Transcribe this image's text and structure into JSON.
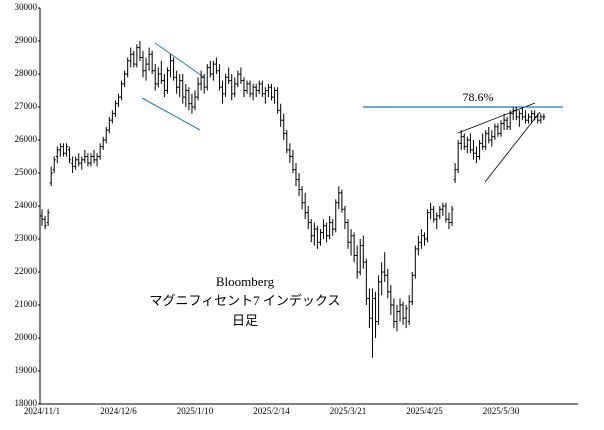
{
  "chart_data": {
    "type": "ohlc",
    "color": "#000000",
    "annotation_lines": [
      "Bloomberg",
      "マグニフィセント7 インデックス",
      "日足"
    ],
    "hline": {
      "value": 27000,
      "label": "78.6%",
      "color": "#1f77b4"
    },
    "ylim": [
      18000,
      30000
    ],
    "yticks": [
      18000,
      19000,
      20000,
      21000,
      22000,
      23000,
      24000,
      25000,
      26000,
      27000,
      28000,
      29000,
      30000
    ],
    "categories": [
      "2024/11/1",
      null,
      null,
      null,
      null,
      null,
      null,
      null,
      null,
      null,
      null,
      null,
      null,
      null,
      null,
      null,
      null,
      null,
      null,
      null,
      null,
      null,
      null,
      null,
      null,
      "2024/12/6",
      null,
      null,
      null,
      null,
      null,
      null,
      null,
      null,
      null,
      null,
      null,
      null,
      null,
      null,
      null,
      null,
      null,
      null,
      null,
      null,
      null,
      null,
      null,
      null,
      "2025/1/10",
      null,
      null,
      null,
      null,
      null,
      null,
      null,
      null,
      null,
      null,
      null,
      null,
      null,
      null,
      null,
      null,
      null,
      null,
      null,
      null,
      null,
      null,
      null,
      null,
      "2025/2/14",
      null,
      null,
      null,
      null,
      null,
      null,
      null,
      null,
      null,
      null,
      null,
      null,
      null,
      null,
      null,
      null,
      null,
      null,
      null,
      null,
      null,
      null,
      null,
      null,
      "2025/3/21",
      null,
      null,
      null,
      null,
      null,
      null,
      null,
      null,
      null,
      null,
      null,
      null,
      null,
      null,
      null,
      null,
      null,
      null,
      null,
      null,
      null,
      null,
      null,
      null,
      "2025/4/25",
      null,
      null,
      null,
      null,
      null,
      null,
      null,
      null,
      null,
      null,
      null,
      null,
      null,
      null,
      null,
      null,
      null,
      null,
      null,
      null,
      null,
      null,
      null,
      null,
      "2025/5/30",
      null,
      null,
      null,
      null,
      null,
      null,
      null,
      null,
      null,
      null,
      null,
      null,
      null,
      null
    ],
    "ohlc": [
      [
        23700,
        23900,
        23400,
        23600
      ],
      [
        23600,
        23700,
        23300,
        23400
      ],
      [
        23500,
        23900,
        23400,
        23800
      ],
      [
        24700,
        25200,
        24600,
        25000
      ],
      [
        25100,
        25500,
        25000,
        25400
      ],
      [
        25500,
        25800,
        25300,
        25700
      ],
      [
        25700,
        25900,
        25500,
        25800
      ],
      [
        25800,
        25900,
        25500,
        25600
      ],
      [
        25600,
        25900,
        25500,
        25800
      ],
      [
        25700,
        25800,
        25300,
        25400
      ],
      [
        25300,
        25500,
        25000,
        25200
      ],
      [
        25200,
        25500,
        25100,
        25400
      ],
      [
        25400,
        25600,
        25200,
        25300
      ],
      [
        25300,
        25500,
        25100,
        25400
      ],
      [
        25400,
        25700,
        25300,
        25500
      ],
      [
        25500,
        25600,
        25200,
        25300
      ],
      [
        25300,
        25600,
        25200,
        25500
      ],
      [
        25500,
        25700,
        25300,
        25400
      ],
      [
        25400,
        25600,
        25200,
        25500
      ],
      [
        25500,
        25900,
        25400,
        25800
      ],
      [
        25800,
        26100,
        25700,
        26000
      ],
      [
        26000,
        26400,
        25900,
        26300
      ],
      [
        26300,
        26700,
        26200,
        26600
      ],
      [
        26600,
        26900,
        26500,
        26800
      ],
      [
        26800,
        27200,
        26700,
        27100
      ],
      [
        27100,
        27400,
        27000,
        27300
      ],
      [
        27300,
        27800,
        27200,
        27700
      ],
      [
        27700,
        28100,
        27600,
        28000
      ],
      [
        28000,
        28500,
        27900,
        28400
      ],
      [
        28400,
        28800,
        28200,
        28600
      ],
      [
        28600,
        28700,
        28200,
        28300
      ],
      [
        28300,
        28900,
        28200,
        28800
      ],
      [
        28800,
        29000,
        28400,
        28500
      ],
      [
        28500,
        28700,
        27900,
        28100
      ],
      [
        28100,
        28500,
        27800,
        28300
      ],
      [
        28300,
        28800,
        28100,
        28600
      ],
      [
        28600,
        28700,
        28000,
        28100
      ],
      [
        28100,
        28300,
        27500,
        27700
      ],
      [
        27700,
        28200,
        27600,
        28000
      ],
      [
        28000,
        28400,
        27700,
        27800
      ],
      [
        27800,
        28000,
        27300,
        27500
      ],
      [
        27500,
        28200,
        27400,
        28100
      ],
      [
        28100,
        28600,
        27900,
        28400
      ],
      [
        28400,
        28500,
        27800,
        27900
      ],
      [
        27900,
        28100,
        27400,
        27600
      ],
      [
        27600,
        28000,
        27300,
        27800
      ],
      [
        27800,
        28000,
        27100,
        27300
      ],
      [
        27300,
        27700,
        27000,
        27500
      ],
      [
        27500,
        27600,
        26900,
        27100
      ],
      [
        27100,
        27400,
        26800,
        27000
      ],
      [
        27000,
        27500,
        26900,
        27300
      ],
      [
        27300,
        27900,
        27200,
        27700
      ],
      [
        27700,
        28100,
        27500,
        27900
      ],
      [
        27900,
        28000,
        27400,
        27600
      ],
      [
        27600,
        28300,
        27500,
        28200
      ],
      [
        28200,
        28400,
        27900,
        28000
      ],
      [
        28000,
        28400,
        27800,
        28300
      ],
      [
        28300,
        28500,
        28000,
        28100
      ],
      [
        28100,
        28300,
        27500,
        27600
      ],
      [
        27600,
        27800,
        27100,
        27400
      ],
      [
        27400,
        28000,
        27300,
        27900
      ],
      [
        27900,
        28200,
        27700,
        27800
      ],
      [
        27800,
        28000,
        27200,
        27400
      ],
      [
        27400,
        27900,
        27300,
        27700
      ],
      [
        27700,
        28100,
        27600,
        28000
      ],
      [
        28000,
        28200,
        27700,
        27800
      ],
      [
        27800,
        27900,
        27300,
        27500
      ],
      [
        27500,
        27800,
        27400,
        27700
      ],
      [
        27700,
        27800,
        27300,
        27400
      ],
      [
        27400,
        27700,
        27200,
        27600
      ],
      [
        27600,
        27700,
        27300,
        27500
      ],
      [
        27500,
        27800,
        27400,
        27700
      ],
      [
        27700,
        27800,
        27300,
        27400
      ],
      [
        27400,
        27600,
        27100,
        27500
      ],
      [
        27500,
        27700,
        27300,
        27600
      ],
      [
        27600,
        27700,
        27200,
        27300
      ],
      [
        27300,
        27600,
        27100,
        27500
      ],
      [
        27500,
        27600,
        26800,
        26900
      ],
      [
        26900,
        27100,
        26400,
        26600
      ],
      [
        26600,
        26800,
        26000,
        26200
      ],
      [
        26200,
        26300,
        25600,
        25700
      ],
      [
        25700,
        25900,
        25300,
        25500
      ],
      [
        25500,
        25700,
        25000,
        25100
      ],
      [
        25100,
        25300,
        24600,
        24800
      ],
      [
        24800,
        25000,
        24300,
        24500
      ],
      [
        24500,
        24600,
        23900,
        24100
      ],
      [
        24100,
        24400,
        23600,
        23800
      ],
      [
        23800,
        24000,
        23300,
        23500
      ],
      [
        23500,
        23600,
        22900,
        23100
      ],
      [
        23100,
        23500,
        22800,
        23300
      ],
      [
        23300,
        23400,
        22700,
        22900
      ],
      [
        22900,
        23300,
        22800,
        23200
      ],
      [
        23200,
        23600,
        23000,
        23400
      ],
      [
        23400,
        23500,
        22900,
        23100
      ],
      [
        23100,
        23700,
        23000,
        23500
      ],
      [
        23500,
        23600,
        23100,
        23300
      ],
      [
        23300,
        24200,
        23200,
        24100
      ],
      [
        24100,
        24600,
        23900,
        24400
      ],
      [
        24400,
        24500,
        23800,
        23900
      ],
      [
        23900,
        24000,
        23300,
        23500
      ],
      [
        23500,
        23600,
        22700,
        22900
      ],
      [
        22900,
        23300,
        22500,
        23100
      ],
      [
        23100,
        23200,
        22300,
        22500
      ],
      [
        22500,
        22800,
        21800,
        22000
      ],
      [
        22000,
        23000,
        21900,
        22800
      ],
      [
        22800,
        23100,
        22100,
        22300
      ],
      [
        22300,
        22400,
        21000,
        21200
      ],
      [
        21200,
        21500,
        20300,
        20600
      ],
      [
        20600,
        21500,
        19400,
        21200
      ],
      [
        21200,
        21400,
        20000,
        20500
      ],
      [
        20500,
        21900,
        20400,
        21700
      ],
      [
        21700,
        22300,
        21300,
        22000
      ],
      [
        22000,
        22600,
        21700,
        21900
      ],
      [
        21900,
        22100,
        21200,
        21400
      ],
      [
        21400,
        21600,
        20700,
        21000
      ],
      [
        21000,
        21200,
        20300,
        20500
      ],
      [
        20500,
        21000,
        20200,
        20800
      ],
      [
        20800,
        21200,
        20500,
        21000
      ],
      [
        21000,
        21100,
        20400,
        20600
      ],
      [
        20600,
        21000,
        20300,
        20900
      ],
      [
        20500,
        21300,
        20400,
        21100
      ],
      [
        21100,
        22000,
        21000,
        21900
      ],
      [
        21900,
        22800,
        21800,
        22700
      ],
      [
        22700,
        23100,
        22500,
        22900
      ],
      [
        22900,
        23300,
        22700,
        23100
      ],
      [
        23100,
        23200,
        22800,
        23000
      ],
      [
        23000,
        23900,
        22900,
        23800
      ],
      [
        23800,
        24100,
        23600,
        23900
      ],
      [
        23900,
        24000,
        23500,
        23600
      ],
      [
        23600,
        23800,
        23300,
        23700
      ],
      [
        23700,
        24000,
        23600,
        23900
      ],
      [
        23900,
        24100,
        23700,
        24000
      ],
      [
        24000,
        24100,
        23500,
        23600
      ],
      [
        23600,
        23800,
        23300,
        23500
      ],
      [
        23500,
        24000,
        23400,
        23900
      ],
      [
        24800,
        25300,
        24700,
        25100
      ],
      [
        25100,
        26000,
        25000,
        25900
      ],
      [
        25900,
        26300,
        25700,
        26100
      ],
      [
        26100,
        26200,
        25700,
        25800
      ],
      [
        25800,
        26100,
        25600,
        26000
      ],
      [
        26000,
        26200,
        25600,
        25700
      ],
      [
        25700,
        26000,
        25400,
        25600
      ],
      [
        25600,
        25800,
        25300,
        25500
      ],
      [
        25500,
        26000,
        25400,
        25900
      ],
      [
        25900,
        26200,
        25700,
        25800
      ],
      [
        25800,
        26300,
        25700,
        26200
      ],
      [
        26200,
        26400,
        25900,
        26000
      ],
      [
        26000,
        26300,
        25800,
        26100
      ],
      [
        26100,
        26500,
        26000,
        26400
      ],
      [
        26400,
        26500,
        26100,
        26200
      ],
      [
        26200,
        26600,
        26100,
        26500
      ],
      [
        26500,
        26800,
        26300,
        26600
      ],
      [
        26600,
        26700,
        26300,
        26400
      ],
      [
        26400,
        26900,
        26300,
        26800
      ],
      [
        26800,
        27000,
        26600,
        26900
      ],
      [
        26900,
        27000,
        26600,
        26700
      ],
      [
        26700,
        26900,
        26400,
        26800
      ],
      [
        26800,
        27000,
        26600,
        26700
      ],
      [
        26700,
        26900,
        26500,
        26600
      ],
      [
        26600,
        26800,
        26500,
        26700
      ],
      [
        26700,
        26900,
        26500,
        26800
      ],
      [
        26800,
        26900,
        26600,
        26700
      ],
      [
        26700,
        26800,
        26500,
        26600
      ],
      [
        26600,
        26800,
        26500,
        26700
      ],
      [
        26700,
        26800,
        26600,
        26700
      ]
    ]
  }
}
